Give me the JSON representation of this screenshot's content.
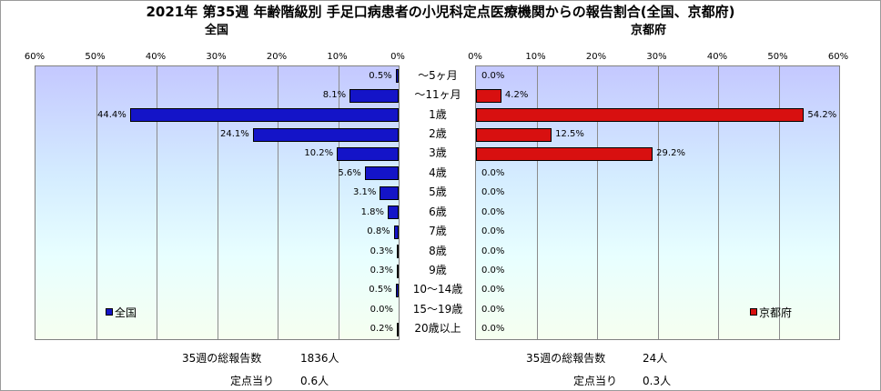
{
  "title": "2021年 第35週 年齢階級別 手足口病患者の小児科定点医療機関からの報告割合(全国、京都府)",
  "chart_data": {
    "type": "bar",
    "orientation": "horizontal-butterfly",
    "categories": [
      "～5ヶ月",
      "～11ヶ月",
      "1歳",
      "2歳",
      "3歳",
      "4歳",
      "5歳",
      "6歳",
      "7歳",
      "8歳",
      "9歳",
      "10～14歳",
      "15～19歳",
      "20歳以上"
    ],
    "unit": "%",
    "axis_ticks": [
      "0%",
      "10%",
      "20%",
      "30%",
      "40%",
      "50%",
      "60%"
    ],
    "xlim": [
      0,
      60
    ],
    "grid": true,
    "panels": [
      {
        "subtitle": "全国",
        "direction": "left",
        "legend": "全国",
        "legend_position": "bottom-left",
        "color": "#1414c8",
        "values": [
          0.5,
          8.1,
          44.4,
          24.1,
          10.2,
          5.6,
          3.1,
          1.8,
          0.8,
          0.3,
          0.3,
          0.5,
          0.0,
          0.2
        ],
        "labels": [
          "0.5%",
          "8.1%",
          "44.4%",
          "24.1%",
          "10.2%",
          "5.6%",
          "3.1%",
          "1.8%",
          "0.8%",
          "0.3%",
          "0.3%",
          "0.5%",
          "0.0%",
          "0.2%"
        ]
      },
      {
        "subtitle": "京都府",
        "direction": "right",
        "legend": "京都府",
        "legend_position": "bottom-right",
        "color": "#d81010",
        "values": [
          0.0,
          4.2,
          54.2,
          12.5,
          29.2,
          0.0,
          0.0,
          0.0,
          0.0,
          0.0,
          0.0,
          0.0,
          0.0,
          0.0
        ],
        "labels": [
          "0.0%",
          "4.2%",
          "54.2%",
          "12.5%",
          "29.2%",
          "0.0%",
          "0.0%",
          "0.0%",
          "0.0%",
          "0.0%",
          "0.0%",
          "0.0%",
          "0.0%",
          "0.0%"
        ]
      }
    ]
  },
  "footer": {
    "left": {
      "reports_label": "35週の総報告数",
      "reports_value": "1836人",
      "per_site_label": "定点当り",
      "per_site_value": "0.6人"
    },
    "right": {
      "reports_label": "35週の総報告数",
      "reports_value": "24人",
      "per_site_label": "定点当り",
      "per_site_value": "0.3人"
    }
  }
}
